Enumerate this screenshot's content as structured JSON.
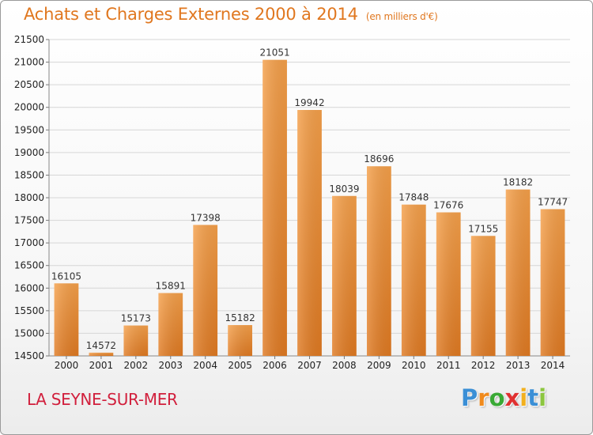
{
  "header": {
    "title": "Achats et Charges Externes 2000 à 2014",
    "subtitle": "(en milliers d'€)"
  },
  "footer": {
    "city": "LA SEYNE-SUR-MER",
    "logo_letters": [
      "P",
      "r",
      "o",
      "x",
      "i",
      "t",
      "i"
    ],
    "logo_colors": [
      "#3a8fd6",
      "#f08a1c",
      "#39a935",
      "#e03030",
      "#f2b01e",
      "#3a8fd6",
      "#8cc63f"
    ]
  },
  "chart_data": {
    "type": "bar",
    "title": "Achats et Charges Externes 2000 à 2014",
    "subtitle": "(en milliers d'€)",
    "categories": [
      "2000",
      "2001",
      "2002",
      "2003",
      "2004",
      "2005",
      "2006",
      "2007",
      "2008",
      "2009",
      "2010",
      "2011",
      "2012",
      "2013",
      "2014"
    ],
    "values": [
      16105,
      14572,
      15173,
      15891,
      17398,
      15182,
      21051,
      19942,
      18039,
      18696,
      17848,
      17676,
      17155,
      18182,
      17747
    ],
    "value_labels": [
      "16105",
      "14572",
      "15173",
      "15891",
      "17398",
      "15182",
      "21051",
      "19942",
      "18039",
      "18696",
      "17848",
      "17676",
      "17155",
      "18182",
      "17747"
    ],
    "yticks": [
      "14500",
      "15000",
      "15500",
      "16000",
      "16500",
      "17000",
      "17500",
      "18000",
      "18500",
      "19000",
      "19500",
      "20000",
      "20500",
      "21000",
      "21500"
    ],
    "ylim": [
      14500,
      21500
    ],
    "grid": true,
    "bar_color_top": "#f5a04a",
    "bar_color_bottom": "#e07a22"
  }
}
